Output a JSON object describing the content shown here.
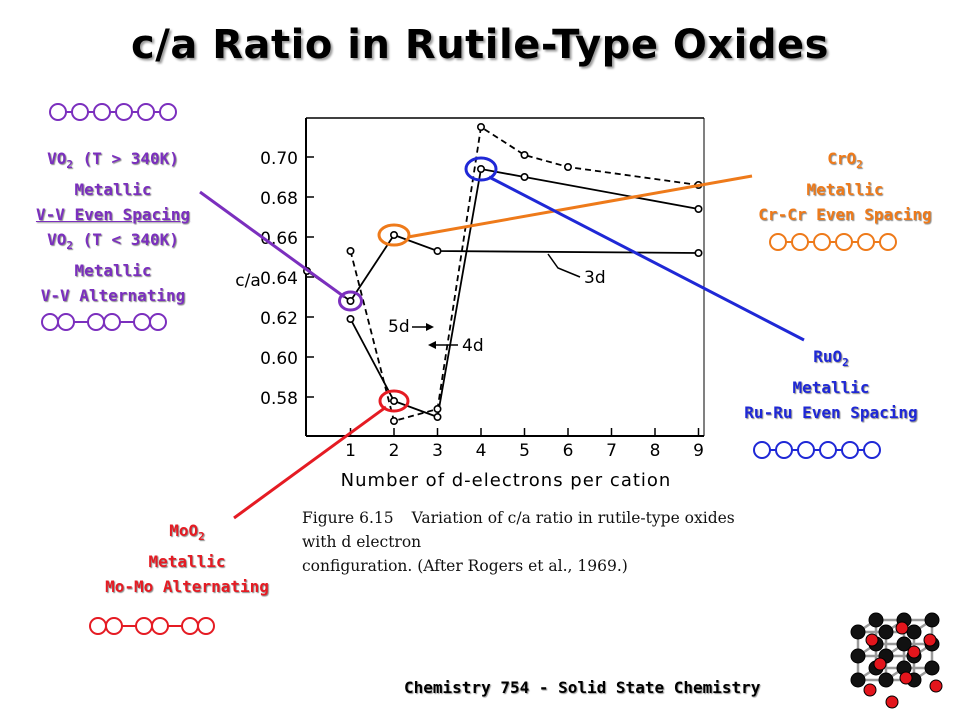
{
  "title": "c/a Ratio in Rutile-Type Oxides",
  "footer": "Chemistry 754 - Solid State Chemistry",
  "caption": {
    "figure": "Figure 6.15",
    "line1": "Variation of c/a ratio in rutile-type oxides with d electron",
    "line2": "configuration. (After Rogers et al., 1969.)"
  },
  "annotations": {
    "vo2": {
      "line1_prefix": "VO",
      "line1_sub": "2",
      "line1_suffix": " (T > 340K)",
      "line2": "Metallic",
      "line3": "V-V Even Spacing",
      "line4_prefix": "VO",
      "line4_sub": "2",
      "line4_suffix": " (T < 340K)",
      "line5": "Metallic",
      "line6": "V-V Alternating",
      "color": "#7B2FBE"
    },
    "cro2": {
      "line1_prefix": "CrO",
      "line1_sub": "2",
      "line2": "Metallic",
      "line3": "Cr-Cr Even Spacing",
      "color": "#EE7A1A"
    },
    "ruo2": {
      "line1_prefix": "RuO",
      "line1_sub": "2",
      "line2": "Metallic",
      "line3": "Ru-Ru Even Spacing",
      "color": "#1F28D6"
    },
    "moo2": {
      "line1_prefix": "MoO",
      "line1_sub": "2",
      "line2": "Metallic",
      "line3": "Mo-Mo Alternating",
      "color": "#E51B23"
    }
  },
  "chart_data": {
    "type": "line",
    "xlabel": "Number of d-electrons per cation",
    "ylabel": "c/a",
    "xlim": [
      0,
      9
    ],
    "ylim": [
      0.56,
      0.72
    ],
    "xticks": [
      "1",
      "2",
      "3",
      "4",
      "5",
      "6",
      "7",
      "8",
      "9"
    ],
    "yticks": [
      "0.58",
      "0.60",
      "0.62",
      "0.64",
      "0.66",
      "0.68",
      "0.70"
    ],
    "series": [
      {
        "name": "3d",
        "style": "solid",
        "x": [
          0,
          1,
          2,
          3,
          9
        ],
        "y": [
          0.643,
          0.628,
          0.661,
          0.653,
          0.652
        ]
      },
      {
        "name": "4d",
        "style": "solid",
        "x": [
          1,
          2,
          3,
          4,
          5,
          9
        ],
        "y": [
          0.619,
          0.578,
          0.57,
          0.694,
          0.69,
          0.674
        ]
      },
      {
        "name": "5d",
        "style": "dashed",
        "x": [
          1,
          2,
          3,
          4,
          5,
          6,
          9
        ],
        "y": [
          0.653,
          0.568,
          0.574,
          0.715,
          0.701,
          0.695,
          0.686
        ]
      }
    ],
    "annotations": [
      "3d",
      "4d",
      "5d"
    ]
  }
}
